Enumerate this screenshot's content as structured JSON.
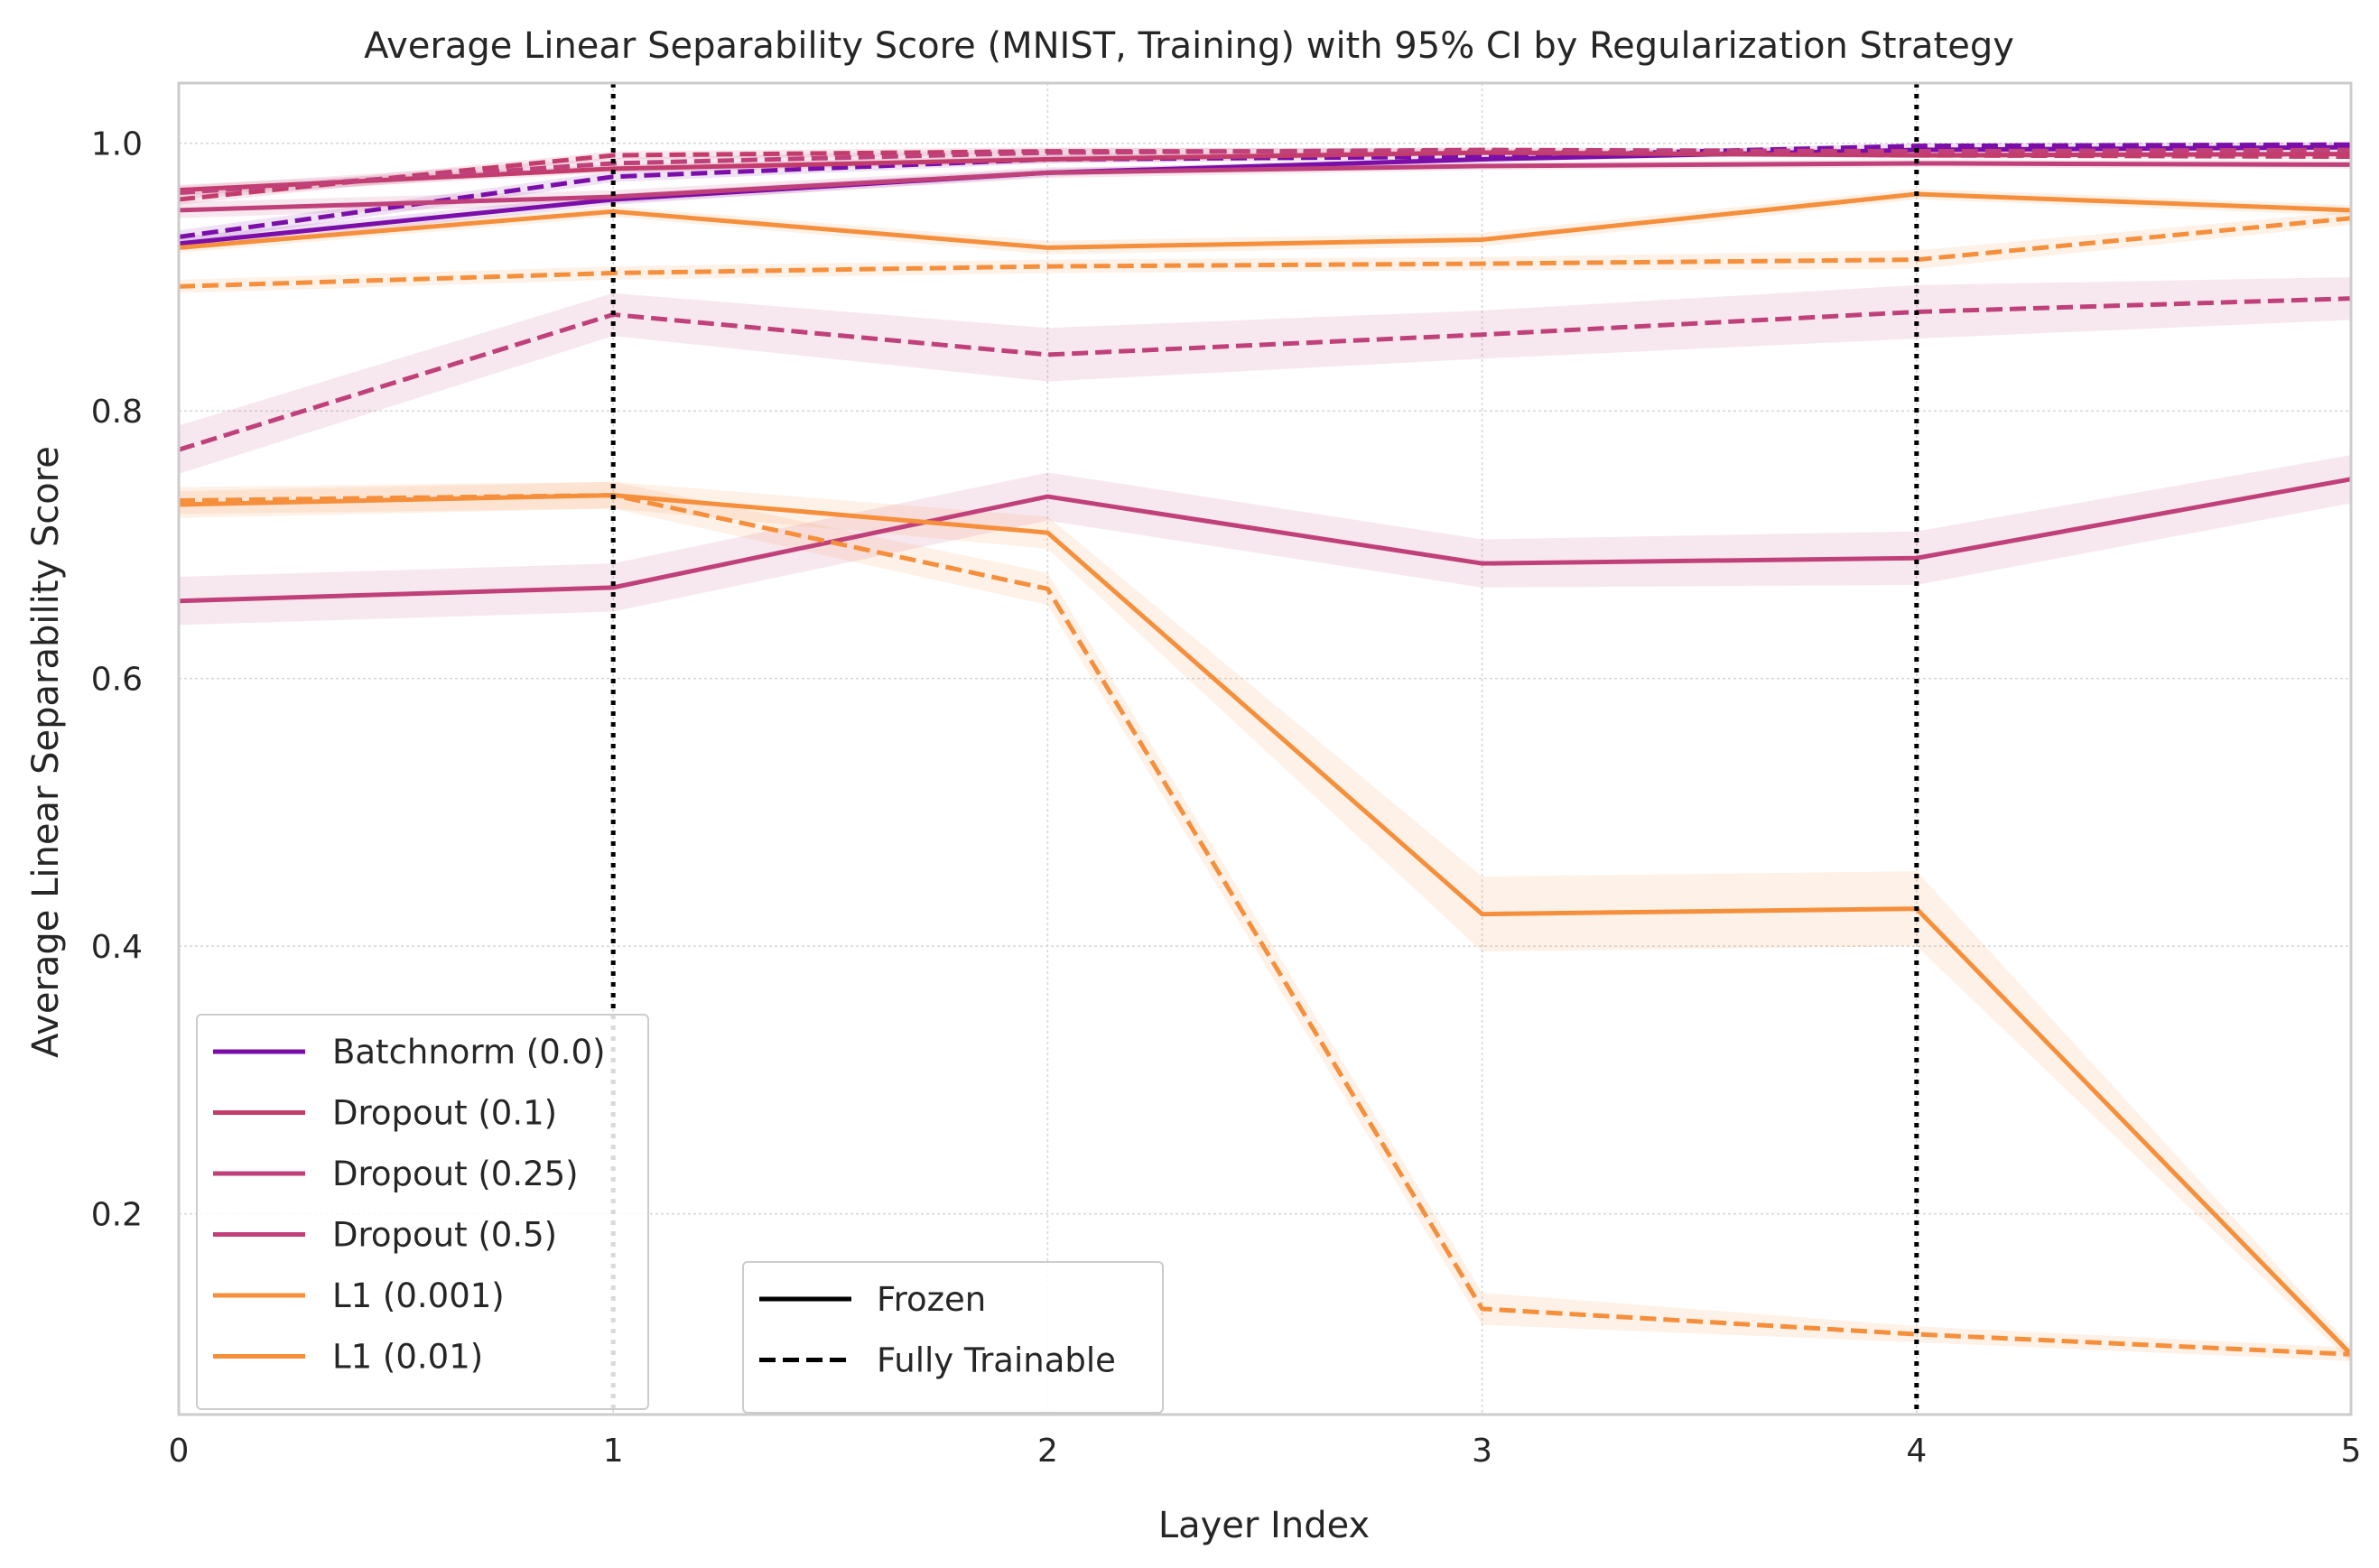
{
  "chart_data": {
    "type": "line",
    "title": "Average Linear Separability Score (MNIST, Training) with 95% CI by Regularization Strategy",
    "xlabel": "Layer Index",
    "ylabel": "Average Linear Separability Score",
    "xlim": [
      0,
      5
    ],
    "ylim": [
      0.05,
      1.045
    ],
    "xticks": [
      0,
      1,
      2,
      3,
      4,
      5
    ],
    "yticks": [
      0.2,
      0.4,
      0.6,
      0.8,
      1.0
    ],
    "grid": true,
    "vlines": [
      1,
      4
    ],
    "x": [
      0,
      1,
      2,
      3,
      4,
      5
    ],
    "series": [
      {
        "name": "Batchnorm (0.0)",
        "color": "#7b0ea8",
        "style": "solid",
        "values": [
          0.925,
          0.958,
          0.978,
          0.988,
          0.995,
          0.997
        ],
        "ci": [
          0.005,
          0.004,
          0.003,
          0.002,
          0.002,
          0.002
        ]
      },
      {
        "name": "Batchnorm (0.0)",
        "color": "#7b0ea8",
        "style": "dashed",
        "values": [
          0.93,
          0.975,
          0.988,
          0.99,
          0.998,
          0.999
        ],
        "ci": [
          0.005,
          0.004,
          0.003,
          0.002,
          0.002,
          0.002
        ]
      },
      {
        "name": "Dropout (0.1)",
        "color": "#c33c6c",
        "style": "solid",
        "values": [
          0.965,
          0.981,
          0.988,
          0.993,
          0.991,
          0.992
        ],
        "ci": [
          0.004,
          0.003,
          0.003,
          0.002,
          0.002,
          0.002
        ]
      },
      {
        "name": "Dropout (0.1)",
        "color": "#c33c6c",
        "style": "dashed",
        "values": [
          0.958,
          0.991,
          0.994,
          0.994,
          0.991,
          0.99
        ],
        "ci": [
          0.004,
          0.003,
          0.003,
          0.002,
          0.002,
          0.002
        ]
      },
      {
        "name": "Dropout (0.25)",
        "color": "#c0417a",
        "style": "solid",
        "values": [
          0.95,
          0.96,
          0.978,
          0.983,
          0.985,
          0.984
        ],
        "ci": [
          0.006,
          0.005,
          0.004,
          0.003,
          0.003,
          0.003
        ]
      },
      {
        "name": "Dropout (0.25)",
        "color": "#c0417a",
        "style": "dashed",
        "values": [
          0.963,
          0.985,
          0.993,
          0.995,
          0.994,
          0.995
        ],
        "ci": [
          0.005,
          0.004,
          0.003,
          0.002,
          0.002,
          0.002
        ]
      },
      {
        "name": "Dropout (0.5)",
        "color": "#c0417a",
        "style": "solid",
        "values": [
          0.658,
          0.668,
          0.736,
          0.686,
          0.69,
          0.749
        ],
        "ci": [
          0.018,
          0.018,
          0.018,
          0.018,
          0.02,
          0.018
        ]
      },
      {
        "name": "Dropout (0.5)",
        "color": "#c0417a",
        "style": "dashed",
        "values": [
          0.771,
          0.872,
          0.842,
          0.857,
          0.874,
          0.884
        ],
        "ci": [
          0.018,
          0.016,
          0.02,
          0.018,
          0.02,
          0.016
        ]
      },
      {
        "name": "L1 (0.001)",
        "color": "#f58f3b",
        "style": "solid",
        "values": [
          0.922,
          0.949,
          0.922,
          0.928,
          0.962,
          0.95
        ],
        "ci": [
          0.004,
          0.004,
          0.005,
          0.005,
          0.004,
          0.004
        ]
      },
      {
        "name": "L1 (0.001)",
        "color": "#f58f3b",
        "style": "dashed",
        "values": [
          0.893,
          0.903,
          0.908,
          0.91,
          0.913,
          0.944
        ],
        "ci": [
          0.005,
          0.005,
          0.005,
          0.005,
          0.007,
          0.005
        ]
      },
      {
        "name": "L1 (0.01)",
        "color": "#f58f3b",
        "style": "solid",
        "values": [
          0.73,
          0.737,
          0.709,
          0.424,
          0.428,
          0.095
        ],
        "ci": [
          0.01,
          0.01,
          0.012,
          0.028,
          0.028,
          0.006
        ]
      },
      {
        "name": "L1 (0.01)",
        "color": "#f58f3b",
        "style": "dashed",
        "values": [
          0.733,
          0.737,
          0.667,
          0.129,
          0.11,
          0.095
        ],
        "ci": [
          0.01,
          0.01,
          0.012,
          0.012,
          0.006,
          0.005
        ]
      }
    ],
    "legend_main": {
      "placement": "lower-left",
      "entries": [
        {
          "label": "Batchnorm (0.0)",
          "color": "#7b0ea8"
        },
        {
          "label": "Dropout (0.1)",
          "color": "#c33c6c"
        },
        {
          "label": "Dropout (0.25)",
          "color": "#c0417a"
        },
        {
          "label": "Dropout (0.5)",
          "color": "#c0417a"
        },
        {
          "label": "L1 (0.001)",
          "color": "#f58f3b"
        },
        {
          "label": "L1 (0.01)",
          "color": "#f58f3b"
        }
      ]
    },
    "legend_style": {
      "placement": "lower-center",
      "entries": [
        {
          "label": "Frozen",
          "style": "solid",
          "color": "#000000"
        },
        {
          "label": "Fully Trainable",
          "style": "dashed",
          "color": "#000000"
        }
      ]
    }
  }
}
